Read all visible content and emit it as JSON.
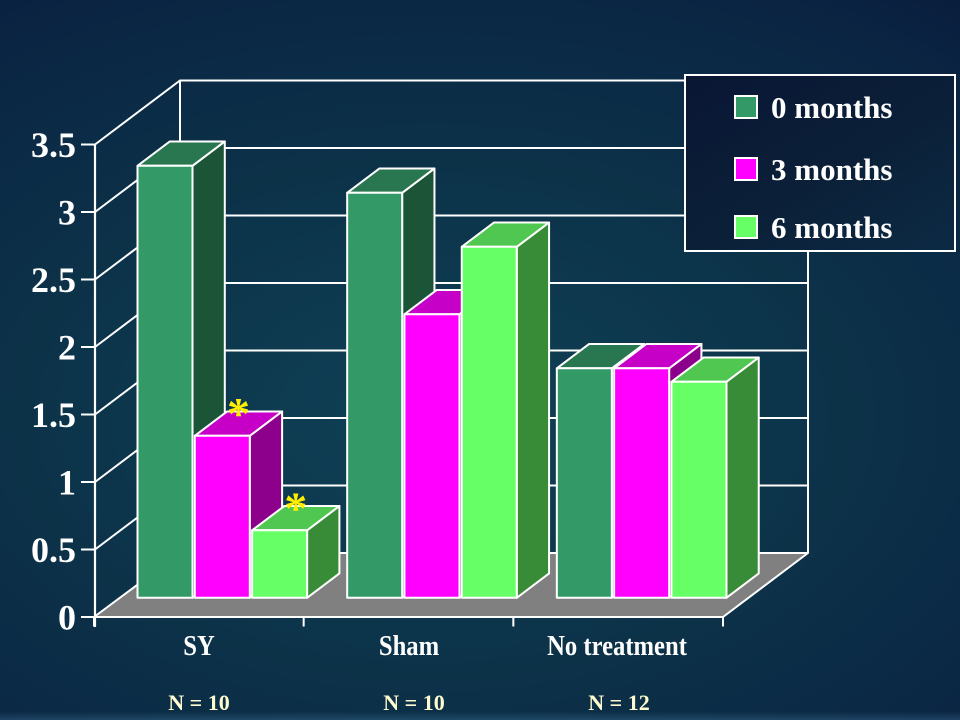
{
  "chart_data": {
    "type": "bar",
    "projection": "3d",
    "title": "",
    "xlabel": "",
    "ylabel": "",
    "categories": [
      "SY",
      "Sham",
      "No treatment"
    ],
    "series": [
      {
        "name": "0 months",
        "color": "#339966",
        "values": [
          3.2,
          3.0,
          1.7
        ]
      },
      {
        "name": "3 months",
        "color": "#FF00FF",
        "values": [
          1.2,
          2.1,
          1.7
        ]
      },
      {
        "name": "6 months",
        "color": "#66FF66",
        "values": [
          0.5,
          2.6,
          1.6
        ]
      }
    ],
    "n_labels": [
      "N = 10",
      "N = 10",
      "N = 12"
    ],
    "ylim": [
      0,
      3.5
    ],
    "yticks": [
      0,
      0.5,
      1,
      1.5,
      2,
      2.5,
      3,
      3.5
    ],
    "ytick_labels": [
      "0",
      "0.5",
      "1",
      "1.5",
      "2",
      "2.5",
      "3",
      "3.5"
    ],
    "grid": true,
    "legend_position": "top-right",
    "annotations": [
      {
        "symbol": "*",
        "category": "SY",
        "series": "3 months",
        "color": "#FFEE00"
      },
      {
        "symbol": "*",
        "category": "SY",
        "series": "6 months",
        "color": "#FFEE00"
      }
    ],
    "colors": {
      "floor": "#808080",
      "line": "#FFFFFF",
      "axis_text": "#FFFFFF",
      "category_text": "#FFFFFF",
      "n_label_text": "#FFFCCF",
      "background_dark": "#070C2E",
      "background_teal": "#0F4156"
    }
  },
  "legend": {
    "items": [
      {
        "label": "0 months"
      },
      {
        "label": "3 months"
      },
      {
        "label": "6 months"
      }
    ]
  }
}
